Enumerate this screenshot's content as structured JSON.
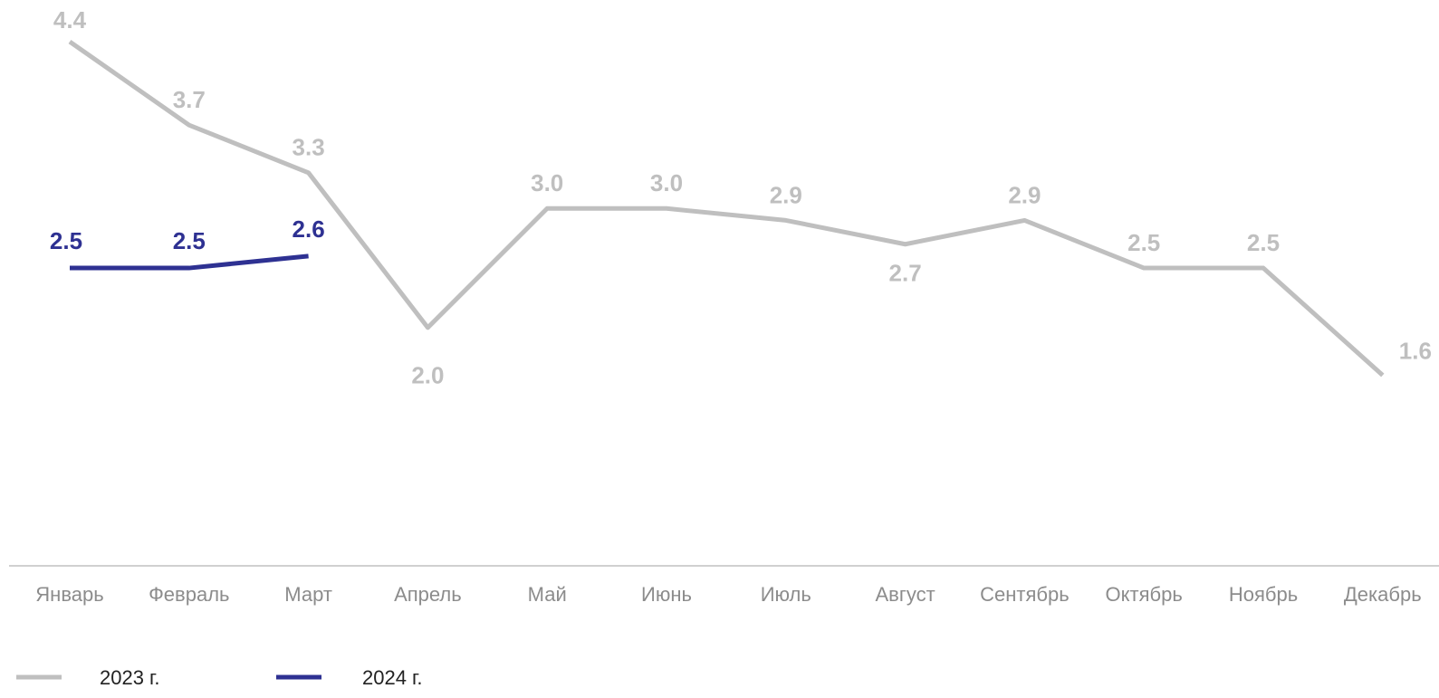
{
  "chart_data": {
    "type": "line",
    "categories": [
      "Январь",
      "Февраль",
      "Март",
      "Апрель",
      "Май",
      "Июнь",
      "Июль",
      "Август",
      "Сентябрь",
      "Октябрь",
      "Ноябрь",
      "Декабрь"
    ],
    "series": [
      {
        "name": "2023 г.",
        "color": "#bfbfbf",
        "values": [
          4.4,
          3.7,
          3.3,
          2.0,
          3.0,
          3.0,
          2.9,
          2.7,
          2.9,
          2.5,
          2.5,
          1.6
        ],
        "value_labels": [
          "4.4",
          "3.7",
          "3.3",
          "2.0",
          "3.0",
          "3.0",
          "2.9",
          "2.7",
          "2.9",
          "2.5",
          "2.5",
          "1.6"
        ]
      },
      {
        "name": "2024 г.",
        "color": "#2e3192",
        "values": [
          2.5,
          2.5,
          2.6,
          null,
          null,
          null,
          null,
          null,
          null,
          null,
          null,
          null
        ],
        "value_labels": [
          "2.5",
          "2.5",
          "2.6",
          null,
          null,
          null,
          null,
          null,
          null,
          null,
          null,
          null
        ]
      }
    ],
    "ylim": [
      0,
      4.75
    ],
    "legend": "bottom-left"
  }
}
